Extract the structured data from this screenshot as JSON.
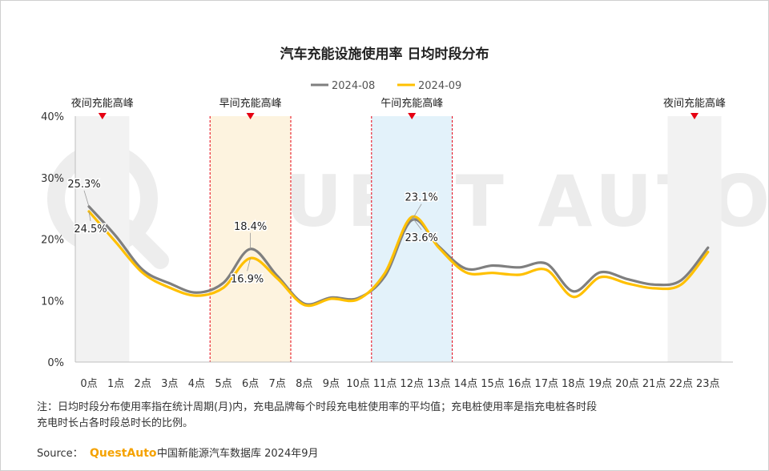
{
  "chart_data": {
    "type": "line",
    "title": "汽车充能设施使用率 日均时段分布",
    "categories": [
      "0点",
      "1点",
      "2点",
      "3点",
      "4点",
      "5点",
      "6点",
      "7点",
      "8点",
      "9点",
      "10点",
      "11点",
      "12点",
      "13点",
      "14点",
      "15点",
      "16点",
      "17点",
      "18点",
      "19点",
      "20点",
      "21点",
      "22点",
      "23点"
    ],
    "series": [
      {
        "name": "2024-08",
        "color": "#7f7f7f",
        "values": [
          25.3,
          20.5,
          15.0,
          12.8,
          11.3,
          12.9,
          18.4,
          14.0,
          9.5,
          10.5,
          10.4,
          14.0,
          23.1,
          18.8,
          15.2,
          15.7,
          15.4,
          16.0,
          11.5,
          14.6,
          13.5,
          12.6,
          13.3,
          18.6
        ]
      },
      {
        "name": "2024-09",
        "color": "#ffc000",
        "values": [
          24.5,
          19.5,
          14.5,
          12.1,
          10.8,
          12.1,
          16.9,
          13.6,
          9.3,
          10.3,
          10.2,
          14.5,
          23.6,
          18.6,
          14.6,
          14.5,
          14.2,
          15.0,
          10.6,
          13.8,
          12.8,
          12.0,
          12.6,
          17.9
        ]
      }
    ],
    "ylim": [
      0,
      40
    ],
    "yticks": [
      "0%",
      "10%",
      "20%",
      "30%",
      "40%"
    ],
    "xlabel": "",
    "ylabel": "",
    "legend": "top-center",
    "grid": false,
    "data_labels": [
      {
        "text": "25.3%",
        "series": "2024-08",
        "index": 0
      },
      {
        "text": "24.5%",
        "series": "2024-09",
        "index": 0
      },
      {
        "text": "18.4%",
        "series": "2024-08",
        "index": 6
      },
      {
        "text": "16.9%",
        "series": "2024-09",
        "index": 6
      },
      {
        "text": "23.1%",
        "series": "2024-08",
        "index": 12
      },
      {
        "text": "23.6%",
        "series": "2024-09",
        "index": 12
      }
    ],
    "highlight_bands": [
      {
        "label": "夜间充能高峰",
        "from": 0,
        "to": 1,
        "color": "#f2f2f2",
        "dashed": false
      },
      {
        "label": "早间充能高峰",
        "from": 5,
        "to": 7,
        "color": "#fdf3df",
        "dashed": true
      },
      {
        "label": "午间充能高峰",
        "from": 11,
        "to": 13,
        "color": "#e3f2fa",
        "dashed": true
      },
      {
        "label": "夜间充能高峰",
        "from": 22,
        "to": 23,
        "color": "#f2f2f2",
        "dashed": false
      }
    ],
    "marker_color": "#e60012"
  },
  "note": "注：日均时段分布使用率指在统计周期(月)内，充电品牌每个时段充电桩使用率的平均值；充电桩使用率是指充电桩各时段充电时长占各时段总时长的比例。",
  "source": {
    "prefix": "Source：",
    "brand": "QuestAuto",
    "text": "中国新能源汽车数据库 2024年9月"
  },
  "watermark": "QUEST AUTO"
}
